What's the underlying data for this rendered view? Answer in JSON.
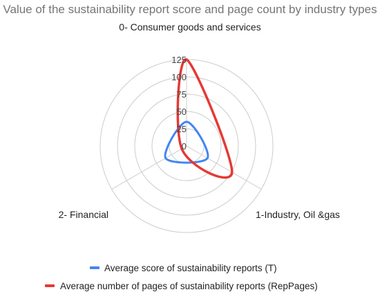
{
  "chart_data": {
    "type": "radar",
    "title": "Value of the sustainability report score and page count by industry types",
    "categories": [
      "0- Consumer goods and services",
      "1-Industry, Oil &gas",
      "2- Financial"
    ],
    "ticks": [
      "0",
      "25",
      "50",
      "75",
      "100",
      "125"
    ],
    "rlim": [
      0,
      125
    ],
    "grid": true,
    "legend_position": "bottom",
    "series": [
      {
        "name": "Average score of sustainability reports (T)",
        "color": "#4285f4",
        "values": [
          35,
          35,
          35
        ]
      },
      {
        "name": "Average number of pages of sustainability reports (RepPages)",
        "color": "#e53935",
        "values": [
          125,
          76,
          8
        ]
      }
    ]
  }
}
